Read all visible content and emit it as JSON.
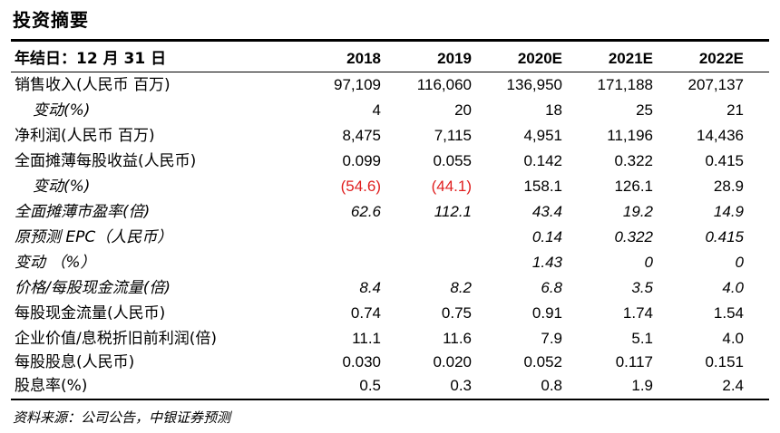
{
  "title": "投资摘要",
  "header": {
    "label": "年结日：12 月 31 日",
    "years": [
      "2018",
      "2019",
      "2020E",
      "2021E",
      "2022E"
    ]
  },
  "rows": [
    {
      "label": "销售收入(人民币 百万)",
      "values": [
        "97,109",
        "116,060",
        "136,950",
        "171,188",
        "207,137"
      ]
    },
    {
      "label": "变动(%)",
      "values": [
        "4",
        "20",
        "18",
        "25",
        "21"
      ]
    },
    {
      "label": "净利润(人民币 百万)",
      "values": [
        "8,475",
        "7,115",
        "4,951",
        "11,196",
        "14,436"
      ]
    },
    {
      "label": "全面摊薄每股收益(人民币)",
      "values": [
        "0.099",
        "0.055",
        "0.142",
        "0.322",
        "0.415"
      ]
    },
    {
      "label": "变动(%)",
      "values": [
        "(54.6)",
        "(44.1)",
        "158.1",
        "126.1",
        "28.9"
      ]
    },
    {
      "label": "全面摊薄市盈率(倍)",
      "values": [
        "62.6",
        "112.1",
        "43.4",
        "19.2",
        "14.9"
      ]
    },
    {
      "label": "原预测 EPC（人民币）",
      "values": [
        "",
        "",
        "0.14",
        "0.322",
        "0.415"
      ]
    },
    {
      "label": "变动 （%）",
      "values": [
        "",
        "",
        "1.43",
        "0",
        "0"
      ]
    },
    {
      "label": "价格/每股现金流量(倍)",
      "values": [
        "8.4",
        "8.2",
        "6.8",
        "3.5",
        "4.0"
      ]
    },
    {
      "label": "每股现金流量(人民币)",
      "values": [
        "0.74",
        "0.75",
        "0.91",
        "1.74",
        "1.54"
      ]
    },
    {
      "label": "企业价值/息税折旧前利润(倍)",
      "values": [
        "11.1",
        "11.6",
        "7.9",
        "5.1",
        "4.0"
      ]
    },
    {
      "label": "每股股息(人民币)",
      "values": [
        "0.030",
        "0.020",
        "0.052",
        "0.117",
        "0.151"
      ]
    },
    {
      "label": "股息率(%)",
      "values": [
        "0.5",
        "0.3",
        "0.8",
        "1.9",
        "2.4"
      ]
    }
  ],
  "source": "资料来源：公司公告，中银证券预测",
  "colors": {
    "negative": "#e02020",
    "text": "#000000"
  }
}
